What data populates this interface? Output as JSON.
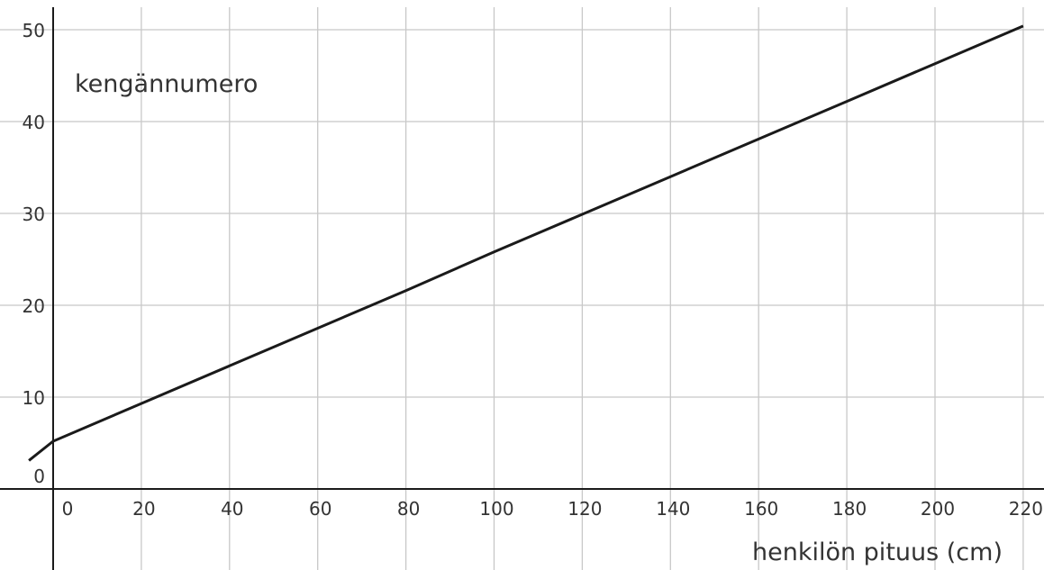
{
  "chart_data": {
    "type": "line",
    "xlabel": "henkilön pituus (cm)",
    "ylabel": "kengännumero",
    "xlim": [
      -5.5,
      224
    ],
    "ylim": [
      -9,
      52.5
    ],
    "x_ticks": [
      0,
      20,
      40,
      60,
      80,
      100,
      120,
      140,
      160,
      180,
      200,
      220
    ],
    "y_ticks": [
      0,
      10,
      20,
      30,
      40,
      50
    ],
    "grid": true,
    "series": [
      {
        "x": [
          -5.5,
          0,
          20,
          40,
          60,
          80,
          100,
          120,
          140,
          160,
          180,
          200,
          220
        ],
        "y": [
          3.1,
          5.2,
          9.3,
          13.4,
          17.5,
          21.6,
          25.8,
          29.9,
          34.0,
          38.1,
          42.2,
          46.3,
          50.4
        ]
      }
    ],
    "colors": {
      "line": "#1a1a1a",
      "grid": "#c8c8c8",
      "axis": "#1a1a1a"
    }
  }
}
